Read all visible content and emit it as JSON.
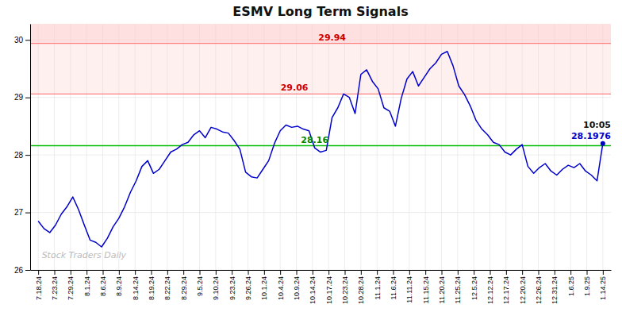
{
  "chart_data": {
    "type": "line",
    "title": "ESMV Long Term Signals",
    "xlim": [
      -0.5,
      35.5
    ],
    "xticks": [
      {
        "value": 0,
        "label": "7.18.24"
      },
      {
        "value": 1,
        "label": "7.23.24"
      },
      {
        "value": 2,
        "label": "7.29.24"
      },
      {
        "value": 3,
        "label": "8.1.24"
      },
      {
        "value": 4,
        "label": "8.6.24"
      },
      {
        "value": 5,
        "label": "8.9.24"
      },
      {
        "value": 6,
        "label": "8.14.24"
      },
      {
        "value": 7,
        "label": "8.19.24"
      },
      {
        "value": 8,
        "label": "8.22.24"
      },
      {
        "value": 9,
        "label": "8.29.24"
      },
      {
        "value": 10,
        "label": "9.5.24"
      },
      {
        "value": 11,
        "label": "9.10.24"
      },
      {
        "value": 12,
        "label": "9.23.24"
      },
      {
        "value": 13,
        "label": "9.26.24"
      },
      {
        "value": 14,
        "label": "10.1.24"
      },
      {
        "value": 15,
        "label": "10.4.24"
      },
      {
        "value": 16,
        "label": "10.9.24"
      },
      {
        "value": 17,
        "label": "10.14.24"
      },
      {
        "value": 18,
        "label": "10.17.24"
      },
      {
        "value": 19,
        "label": "10.23.24"
      },
      {
        "value": 20,
        "label": "10.28.24"
      },
      {
        "value": 21,
        "label": "11.1.24"
      },
      {
        "value": 22,
        "label": "11.6.24"
      },
      {
        "value": 23,
        "label": "11.11.24"
      },
      {
        "value": 24,
        "label": "11.15.24"
      },
      {
        "value": 25,
        "label": "11.20.24"
      },
      {
        "value": 26,
        "label": "11.25.24"
      },
      {
        "value": 27,
        "label": "12.5.24"
      },
      {
        "value": 28,
        "label": "12.12.24"
      },
      {
        "value": 29,
        "label": "12.17.24"
      },
      {
        "value": 30,
        "label": "12.20.24"
      },
      {
        "value": 31,
        "label": "12.26.24"
      },
      {
        "value": 32,
        "label": "12.31.24"
      },
      {
        "value": 33,
        "label": "1.6.25"
      },
      {
        "value": 34,
        "label": "1.9.25"
      },
      {
        "value": 35,
        "label": "1.14.25"
      }
    ],
    "ylim": [
      26.0,
      30.28
    ],
    "yticks": [
      26,
      27,
      28,
      29,
      30
    ],
    "grid": true,
    "series": [
      {
        "color": "#0000cc",
        "values": [
          26.85,
          26.72,
          26.65,
          26.78,
          26.97,
          27.1,
          27.27,
          27.05,
          26.78,
          26.52,
          26.48,
          26.4,
          26.55,
          26.75,
          26.9,
          27.1,
          27.35,
          27.55,
          27.8,
          27.9,
          27.68,
          27.75,
          27.9,
          28.05,
          28.1,
          28.18,
          28.22,
          28.35,
          28.42,
          28.3,
          28.48,
          28.45,
          28.4,
          28.38,
          28.25,
          28.1,
          27.7,
          27.62,
          27.6,
          27.75,
          27.9,
          28.2,
          28.42,
          28.52,
          28.48,
          28.5,
          28.45,
          28.42,
          28.12,
          28.05,
          28.08,
          28.65,
          28.82,
          29.06,
          29.0,
          28.72,
          29.4,
          29.48,
          29.28,
          29.15,
          28.82,
          28.76,
          28.5,
          28.98,
          29.32,
          29.45,
          29.2,
          29.35,
          29.5,
          29.6,
          29.75,
          29.8,
          29.55,
          29.2,
          29.05,
          28.85,
          28.6,
          28.45,
          28.35,
          28.22,
          28.18,
          28.05,
          28.0,
          28.1,
          28.18,
          27.8,
          27.68,
          27.78,
          27.85,
          27.72,
          27.65,
          27.75,
          27.82,
          27.78,
          27.85,
          27.72,
          27.65,
          27.55,
          28.2
        ]
      }
    ],
    "bands": [
      {
        "from": 29.06,
        "to": 29.94,
        "color": "#ffcccc"
      },
      {
        "from": 29.94,
        "to": 30.28,
        "color": "#ffcccc"
      }
    ],
    "reference_lines": [
      {
        "value": 28.16,
        "label": "28.16",
        "color": "#00bb00",
        "label_color": "#008800"
      },
      {
        "value": 29.06,
        "label": "29.06",
        "color": "#ff8080",
        "label_color": "#cc0000"
      },
      {
        "value": 29.94,
        "label": "29.94",
        "color": "#ff8080",
        "label_color": "#cc0000"
      }
    ],
    "annotations": [
      {
        "text": "10:05",
        "color": "#111111"
      },
      {
        "text": "28.1976",
        "color": "#0000cc"
      }
    ],
    "watermark": "Stock Traders Daily"
  }
}
